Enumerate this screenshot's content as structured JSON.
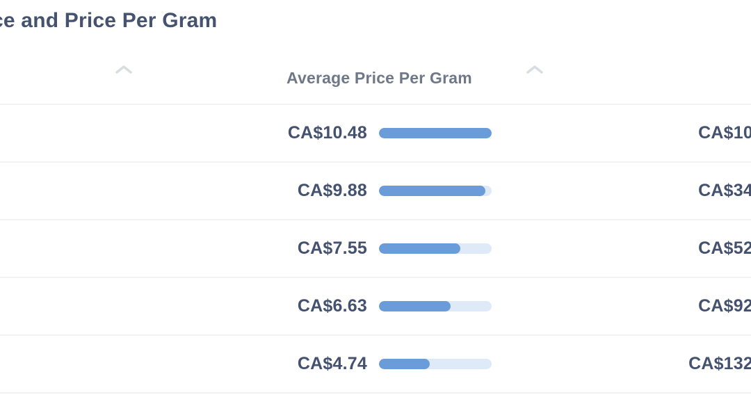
{
  "page": {
    "title": "ce and Price Per Gram"
  },
  "table": {
    "header": {
      "avg_price_label": "Average Price Per Gram",
      "left_sort_icon": "chevron-up-icon",
      "right_sort_icon": "chevron-up-icon"
    },
    "rows": [
      {
        "avg_price": "CA$10.48",
        "bar_pct": 100,
        "right_value": "CA$10"
      },
      {
        "avg_price": "CA$9.88",
        "bar_pct": 94.3,
        "right_value": "CA$34"
      },
      {
        "avg_price": "CA$7.55",
        "bar_pct": 72.0,
        "right_value": "CA$52"
      },
      {
        "avg_price": "CA$6.63",
        "bar_pct": 63.3,
        "right_value": "CA$92"
      },
      {
        "avg_price": "CA$4.74",
        "bar_pct": 45.2,
        "right_value": "CA$132"
      }
    ]
  },
  "colors": {
    "title_text": "#45536f",
    "header_text": "#6f7888",
    "value_text": "#44516f",
    "bar_fill": "#6b9cda",
    "bar_track": "#dfeaf9",
    "row_divider": "#f1f2f4",
    "sort_icon": "#d9dce1",
    "background": "#ffffff"
  },
  "chart_data": {
    "type": "bar",
    "title": "Average Price Per Gram",
    "values": [
      10.48,
      9.88,
      7.55,
      6.63,
      4.74
    ],
    "value_labels": [
      "CA$10.48",
      "CA$9.88",
      "CA$7.55",
      "CA$6.63",
      "CA$4.74"
    ],
    "right_column_visible_values": [
      "CA$10",
      "CA$34",
      "CA$52",
      "CA$92",
      "CA$132"
    ],
    "currency": "CA$",
    "xlim": [
      0,
      10.48
    ],
    "orientation": "horizontal",
    "legend": "none",
    "grid": "off"
  }
}
